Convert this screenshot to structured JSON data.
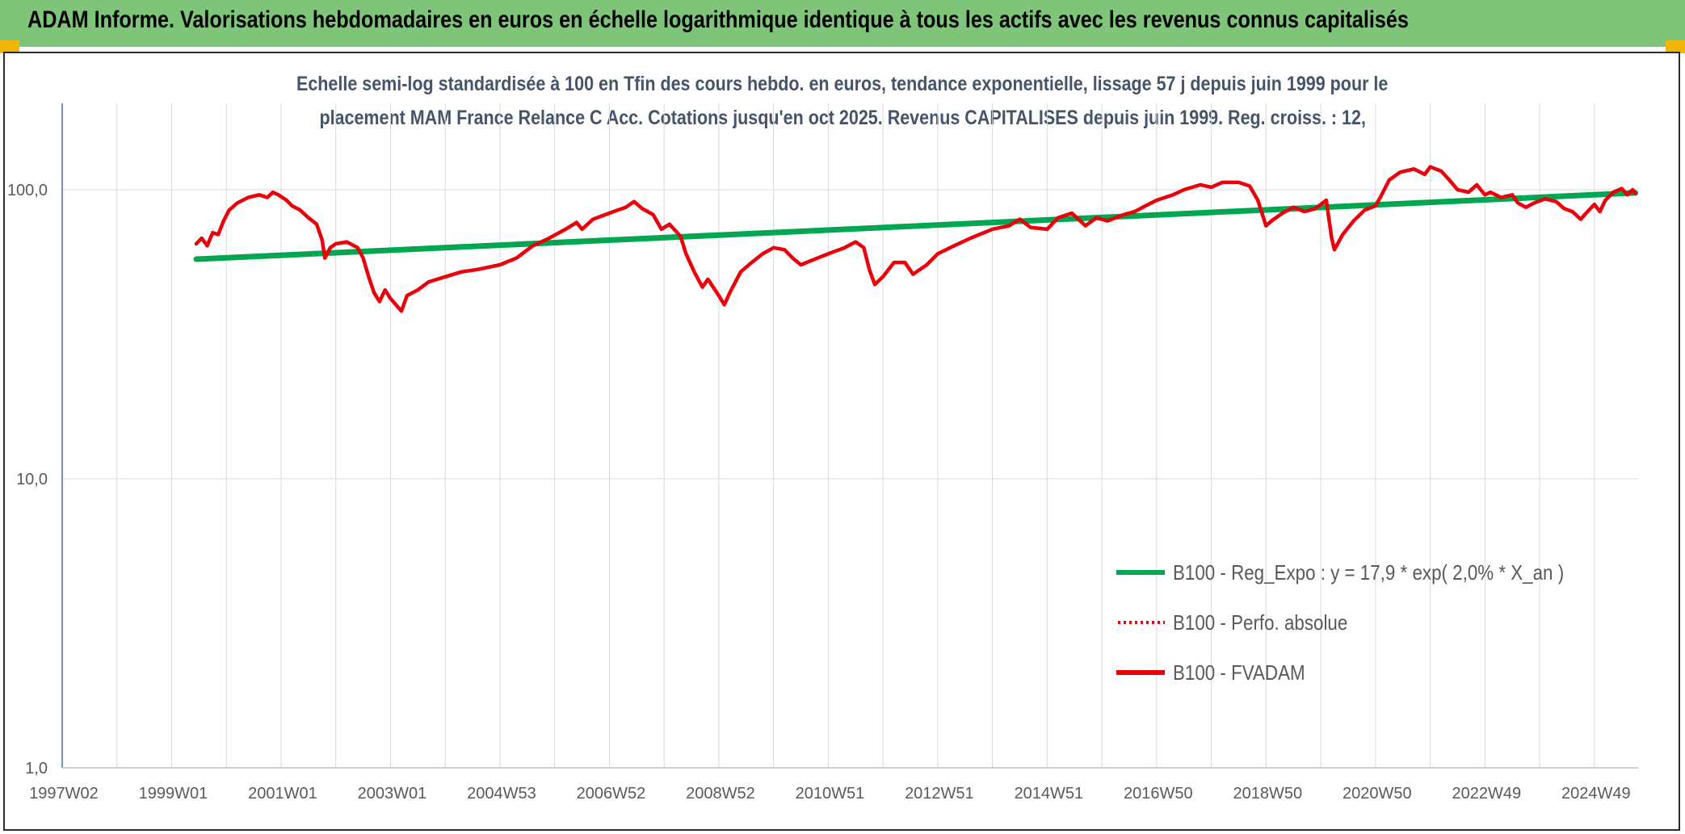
{
  "banner": {
    "title": "ADAM Informe. Valorisations hebdomadaires en euros en échelle logarithmique identique à tous les actifs avec les revenus connus capitalisés"
  },
  "colors": {
    "banner_bg": "#7ec57a",
    "corner_accent": "#f2b705",
    "trend_line": "#00a651",
    "fund_line": "#e8000a",
    "subtitle_text": "#44546a",
    "grid": "#d9d9d9"
  },
  "chart_data": {
    "type": "line",
    "subtitle_line1": "Echelle semi-log standardisée à 100 en Tfin des cours hebdo. en euros, tendance exponentielle, lissage 57 j depuis juin 1999 pour le",
    "subtitle_line2": "placement MAM France Relance C Acc. Cotations jusqu'en oct 2025. Revenus CAPITALISES depuis juin 1999. Reg. croiss. : 12,",
    "y_scale": "log",
    "ylim": [
      1,
      200
    ],
    "y_ticks": [
      {
        "value": 1,
        "label": "1,0"
      },
      {
        "value": 10,
        "label": "10,0"
      },
      {
        "value": 100,
        "label": "100,0"
      }
    ],
    "xlim": [
      1997.0,
      2025.8
    ],
    "x_ticks": [
      {
        "value": 1997.0,
        "label": "1997W02"
      },
      {
        "value": 1999.0,
        "label": "1999W01"
      },
      {
        "value": 2001.0,
        "label": "2001W01"
      },
      {
        "value": 2003.0,
        "label": "2003W01"
      },
      {
        "value": 2005.0,
        "label": "2004W53"
      },
      {
        "value": 2007.0,
        "label": "2006W52"
      },
      {
        "value": 2009.0,
        "label": "2008W52"
      },
      {
        "value": 2011.0,
        "label": "2010W51"
      },
      {
        "value": 2013.0,
        "label": "2012W51"
      },
      {
        "value": 2015.0,
        "label": "2014W51"
      },
      {
        "value": 2017.0,
        "label": "2016W50"
      },
      {
        "value": 2019.0,
        "label": "2018W50"
      },
      {
        "value": 2021.0,
        "label": "2020W50"
      },
      {
        "value": 2023.0,
        "label": "2022W49"
      },
      {
        "value": 2025.0,
        "label": "2024W49"
      }
    ],
    "grid": true,
    "legend_position": "bottom-right",
    "series": [
      {
        "name": "B100 - Reg_Expo : y = 17,9 * exp( 2,0% *  X_an )",
        "style": "solid-thick",
        "color": "#00a651",
        "points": [
          [
            1999.45,
            57.5
          ],
          [
            2025.75,
            97.5
          ]
        ]
      },
      {
        "name": "B100 - Perfo. absolue",
        "style": "dotted",
        "color": "#e8000a",
        "points": []
      },
      {
        "name": "B100 - FVADAM",
        "style": "solid",
        "color": "#e8000a",
        "points": [
          [
            1999.45,
            65
          ],
          [
            1999.55,
            68
          ],
          [
            1999.65,
            64
          ],
          [
            1999.75,
            71
          ],
          [
            1999.85,
            70
          ],
          [
            1999.95,
            78
          ],
          [
            2000.05,
            85
          ],
          [
            2000.2,
            90
          ],
          [
            2000.4,
            94
          ],
          [
            2000.6,
            96
          ],
          [
            2000.75,
            94
          ],
          [
            2000.85,
            98
          ],
          [
            2000.95,
            96
          ],
          [
            2001.1,
            92
          ],
          [
            2001.2,
            88
          ],
          [
            2001.35,
            85
          ],
          [
            2001.5,
            80
          ],
          [
            2001.65,
            76
          ],
          [
            2001.75,
            67
          ],
          [
            2001.8,
            58
          ],
          [
            2001.9,
            63
          ],
          [
            2002.0,
            65
          ],
          [
            2002.2,
            66
          ],
          [
            2002.4,
            63
          ],
          [
            2002.5,
            58
          ],
          [
            2002.6,
            50
          ],
          [
            2002.7,
            44
          ],
          [
            2002.8,
            41
          ],
          [
            2002.9,
            45
          ],
          [
            2003.0,
            42
          ],
          [
            2003.1,
            40
          ],
          [
            2003.2,
            38
          ],
          [
            2003.3,
            43
          ],
          [
            2003.5,
            45
          ],
          [
            2003.7,
            48
          ],
          [
            2004.0,
            50
          ],
          [
            2004.3,
            52
          ],
          [
            2004.6,
            53
          ],
          [
            2005.0,
            55
          ],
          [
            2005.3,
            58
          ],
          [
            2005.6,
            64
          ],
          [
            2005.9,
            68
          ],
          [
            2006.2,
            73
          ],
          [
            2006.4,
            77
          ],
          [
            2006.5,
            73
          ],
          [
            2006.7,
            79
          ],
          [
            2007.0,
            83
          ],
          [
            2007.3,
            87
          ],
          [
            2007.45,
            91
          ],
          [
            2007.6,
            86
          ],
          [
            2007.8,
            82
          ],
          [
            2007.95,
            73
          ],
          [
            2008.1,
            76
          ],
          [
            2008.3,
            69
          ],
          [
            2008.4,
            60
          ],
          [
            2008.55,
            52
          ],
          [
            2008.7,
            46
          ],
          [
            2008.8,
            49
          ],
          [
            2009.0,
            43
          ],
          [
            2009.1,
            40
          ],
          [
            2009.2,
            44
          ],
          [
            2009.4,
            52
          ],
          [
            2009.6,
            56
          ],
          [
            2009.8,
            60
          ],
          [
            2010.0,
            63
          ],
          [
            2010.2,
            62
          ],
          [
            2010.35,
            58
          ],
          [
            2010.5,
            55
          ],
          [
            2010.7,
            57
          ],
          [
            2011.0,
            60
          ],
          [
            2011.3,
            63
          ],
          [
            2011.5,
            66
          ],
          [
            2011.65,
            63
          ],
          [
            2011.75,
            53
          ],
          [
            2011.85,
            47
          ],
          [
            2012.0,
            50
          ],
          [
            2012.2,
            56
          ],
          [
            2012.4,
            56
          ],
          [
            2012.55,
            51
          ],
          [
            2012.8,
            55
          ],
          [
            2013.0,
            60
          ],
          [
            2013.3,
            64
          ],
          [
            2013.6,
            68
          ],
          [
            2014.0,
            73
          ],
          [
            2014.3,
            75
          ],
          [
            2014.5,
            79
          ],
          [
            2014.7,
            74
          ],
          [
            2015.0,
            73
          ],
          [
            2015.2,
            80
          ],
          [
            2015.45,
            83
          ],
          [
            2015.7,
            75
          ],
          [
            2015.9,
            80
          ],
          [
            2016.1,
            78
          ],
          [
            2016.4,
            82
          ],
          [
            2016.6,
            84
          ],
          [
            2016.8,
            88
          ],
          [
            2017.0,
            92
          ],
          [
            2017.3,
            96
          ],
          [
            2017.5,
            100
          ],
          [
            2017.8,
            104
          ],
          [
            2018.0,
            102
          ],
          [
            2018.2,
            106
          ],
          [
            2018.5,
            106
          ],
          [
            2018.7,
            103
          ],
          [
            2018.85,
            92
          ],
          [
            2019.0,
            75
          ],
          [
            2019.1,
            78
          ],
          [
            2019.3,
            83
          ],
          [
            2019.5,
            87
          ],
          [
            2019.7,
            84
          ],
          [
            2019.9,
            86
          ],
          [
            2020.1,
            92
          ],
          [
            2020.2,
            68
          ],
          [
            2020.25,
            62
          ],
          [
            2020.4,
            70
          ],
          [
            2020.6,
            78
          ],
          [
            2020.8,
            85
          ],
          [
            2021.0,
            88
          ],
          [
            2021.1,
            95
          ],
          [
            2021.25,
            108
          ],
          [
            2021.45,
            115
          ],
          [
            2021.7,
            118
          ],
          [
            2021.9,
            113
          ],
          [
            2022.0,
            120
          ],
          [
            2022.2,
            116
          ],
          [
            2022.35,
            108
          ],
          [
            2022.5,
            100
          ],
          [
            2022.7,
            98
          ],
          [
            2022.85,
            104
          ],
          [
            2023.0,
            96
          ],
          [
            2023.1,
            98
          ],
          [
            2023.3,
            94
          ],
          [
            2023.5,
            96
          ],
          [
            2023.6,
            90
          ],
          [
            2023.75,
            87
          ],
          [
            2023.9,
            90
          ],
          [
            2024.1,
            93
          ],
          [
            2024.3,
            91
          ],
          [
            2024.45,
            86
          ],
          [
            2024.6,
            84
          ],
          [
            2024.75,
            79
          ],
          [
            2024.85,
            83
          ],
          [
            2025.0,
            89
          ],
          [
            2025.1,
            84
          ],
          [
            2025.2,
            92
          ],
          [
            2025.35,
            98
          ],
          [
            2025.5,
            101
          ],
          [
            2025.6,
            96
          ],
          [
            2025.7,
            100
          ],
          [
            2025.75,
            97
          ]
        ]
      }
    ]
  }
}
